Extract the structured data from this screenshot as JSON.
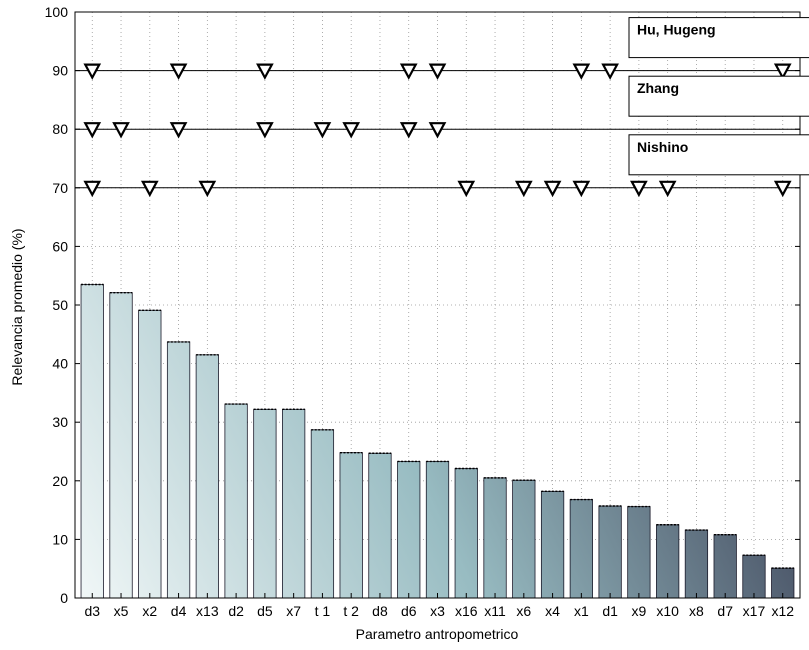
{
  "chart_data": {
    "type": "bar",
    "xlabel": "Parametro antropometrico",
    "ylabel": "Relevancia promedio (%)",
    "ylim": [
      0,
      100
    ],
    "yticks": [
      0,
      10,
      20,
      30,
      40,
      50,
      60,
      70,
      80,
      90,
      100
    ],
    "grid": true,
    "categories": [
      "d3",
      "x5",
      "x2",
      "d4",
      "x13",
      "d2",
      "d5",
      "x7",
      "t 1",
      "t 2",
      "d8",
      "d6",
      "x3",
      "x16",
      "x11",
      "x6",
      "x4",
      "x1",
      "d1",
      "x9",
      "x10",
      "x8",
      "d7",
      "x17",
      "x12"
    ],
    "values": [
      53.5,
      52.1,
      49.1,
      43.7,
      41.5,
      33.1,
      32.2,
      32.2,
      28.7,
      24.8,
      24.7,
      23.3,
      23.3,
      22.1,
      20.5,
      20.1,
      18.2,
      16.8,
      15.7,
      15.6,
      12.5,
      11.6,
      10.8,
      7.3,
      5.1
    ],
    "marker_rows": [
      {
        "name": "Hu, Hugeng",
        "y": 90,
        "categories": [
          "d3",
          "d4",
          "d5",
          "d6",
          "x3",
          "x1",
          "d1",
          "x12"
        ]
      },
      {
        "name": "Zhang",
        "y": 80,
        "categories": [
          "d3",
          "x5",
          "d4",
          "d5",
          "t 1",
          "t 2",
          "d6",
          "x3"
        ]
      },
      {
        "name": "Nishino",
        "y": 70,
        "categories": [
          "d3",
          "x2",
          "x13",
          "x16",
          "x6",
          "x4",
          "x1",
          "x9",
          "x10",
          "x12"
        ]
      }
    ],
    "colors": {
      "bar_light": "#f2f8f8",
      "bar_mid": "#98bcc2",
      "bar_dark": "#2c2c44",
      "marker_edge": "#000000"
    }
  }
}
